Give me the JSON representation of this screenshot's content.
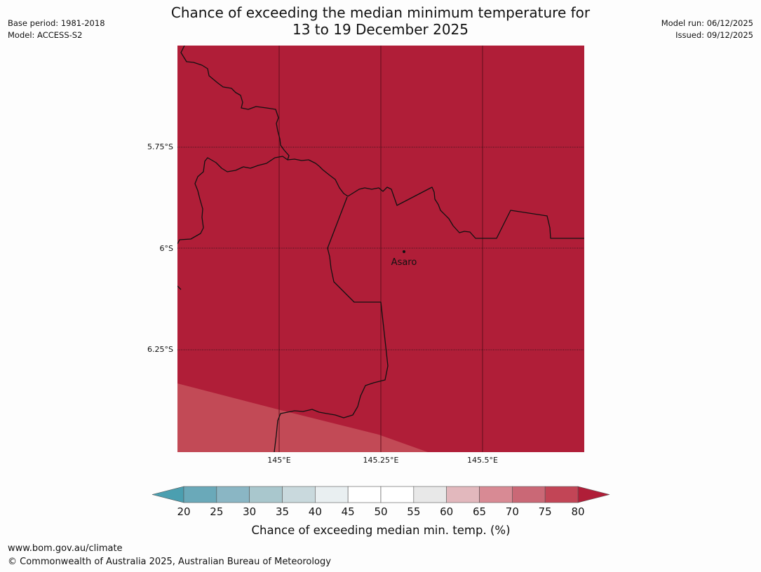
{
  "header": {
    "title_line1": "Chance of exceeding the median minimum temperature for",
    "title_line2": "13 to 19 December 2025",
    "base_period": "Base period: 1981-2018",
    "model": "Model: ACCESS-S2",
    "model_run": "Model run: 06/12/2025",
    "issued": "Issued: 09/12/2025"
  },
  "map": {
    "lat_labels": [
      "5.75°S",
      "6°S",
      "6.25°S"
    ],
    "lon_labels": [
      "145°E",
      "145.25°E",
      "145.5°E"
    ],
    "place_label": "Asaro",
    "fill_colors": {
      "dominant": "#b01e38",
      "lower_band": "#c24a56",
      "border": "#111111"
    }
  },
  "legend": {
    "title": "Chance of exceeding median min. temp. (%)",
    "ticks": [
      "20",
      "25",
      "30",
      "35",
      "40",
      "45",
      "50",
      "55",
      "60",
      "65",
      "70",
      "75",
      "80"
    ],
    "under_color": "#4b9fb0",
    "over_color": "#b01e38",
    "bin_colors": [
      "#6aa9b9",
      "#8ab6c4",
      "#a9c7cd",
      "#c9d9dd",
      "#e9eff1",
      "#ffffff",
      "#ffffff",
      "#e8e8e8",
      "#e2b8bd",
      "#d88a94",
      "#ca6876",
      "#c24556"
    ]
  },
  "footer": {
    "url": "www.bom.gov.au/climate",
    "copyright": "© Commonwealth of Australia 2025, Australian Bureau of Meteorology"
  }
}
